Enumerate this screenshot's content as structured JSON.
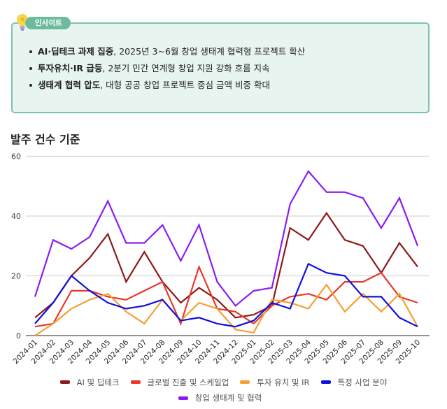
{
  "insight": {
    "badge_label": "인사이트",
    "icon": "lightbulb-icon",
    "items": [
      {
        "bold": "AI·딥테크 과제 집중",
        "text": ", 2025년 3~6월 창업 생태계 협력형 프로젝트 확산"
      },
      {
        "bold": "투자유치·IR 급등",
        "text": ", 2분기 민간 연계형 창업 지원 강화 흐름 지속"
      },
      {
        "bold": "생태계 협력 압도",
        "text": ", 대형 공공 창업 프로젝트 중심 금액 비중 확대"
      }
    ]
  },
  "chart_title": "발주 건수 기준",
  "chart_data": {
    "type": "line",
    "title": "발주 건수 기준",
    "xlabel": "",
    "ylabel": "",
    "ylim": [
      0,
      60
    ],
    "yticks": [
      0,
      20,
      40,
      60
    ],
    "grid": true,
    "legend_position": "bottom",
    "categories": [
      "2024-01",
      "2024-02",
      "2024-03",
      "2024-04",
      "2024-05",
      "2024-06",
      "2024-07",
      "2024-08",
      "2024-09",
      "2024-10",
      "2024-11",
      "2024-12",
      "2025-01",
      "2025-02",
      "2025-03",
      "2025-04",
      "2025-05",
      "2025-06",
      "2025-07",
      "2025-08",
      "2025-09",
      "2025-10"
    ],
    "series": [
      {
        "name": "AI 및 딥테크",
        "color": "#8b1a1a",
        "values": [
          6,
          11,
          20,
          26,
          34,
          18,
          28,
          18,
          11,
          16,
          12,
          6,
          7,
          10,
          36,
          32,
          41,
          32,
          30,
          21,
          31,
          23
        ]
      },
      {
        "name": "글로벌 진출 및 스케일업",
        "color": "#e8382c",
        "values": [
          3,
          4,
          15,
          15,
          13,
          12,
          15,
          18,
          4,
          23,
          9,
          8,
          4,
          10,
          13,
          14,
          12,
          18,
          18,
          21,
          13,
          11
        ]
      },
      {
        "name": "투자 유치 및 IR",
        "color": "#f5a030",
        "values": [
          0,
          4,
          9,
          12,
          14,
          8,
          4,
          12,
          5,
          11,
          9,
          2,
          1,
          12,
          11,
          9,
          17,
          8,
          14,
          8,
          14,
          3
        ]
      },
      {
        "name": "특정 사업 분야",
        "color": "#1010e0",
        "values": [
          4,
          11,
          20,
          15,
          11,
          9,
          10,
          12,
          5,
          6,
          4,
          3,
          5,
          11,
          9,
          24,
          21,
          20,
          13,
          13,
          6,
          3
        ]
      },
      {
        "name": "창업 생태계 및 협력",
        "color": "#8a1ef0",
        "values": [
          13,
          32,
          29,
          33,
          45,
          31,
          31,
          37,
          25,
          37,
          18,
          10,
          15,
          16,
          44,
          55,
          48,
          48,
          46,
          36,
          46,
          30
        ]
      }
    ]
  }
}
